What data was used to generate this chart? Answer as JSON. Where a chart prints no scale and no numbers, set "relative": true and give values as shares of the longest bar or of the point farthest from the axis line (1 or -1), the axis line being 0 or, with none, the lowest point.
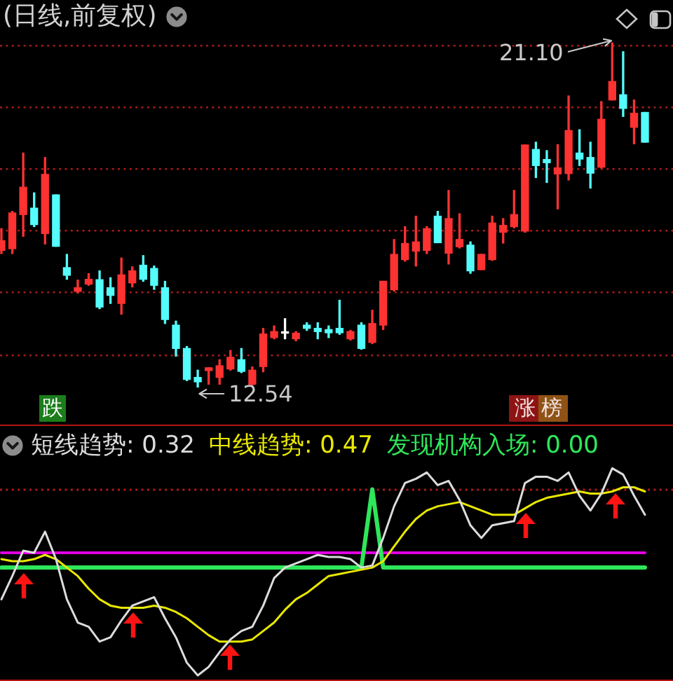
{
  "chart_data": [
    {
      "type": "candlestick",
      "title": "(日线,前复权)",
      "categories": [
        null,
        null,
        null,
        null,
        null,
        null,
        null,
        null,
        null,
        null,
        null,
        null,
        null,
        null,
        null,
        null,
        null,
        null,
        null,
        null,
        null,
        null,
        null,
        null,
        null,
        null,
        null,
        null,
        null,
        null,
        null,
        null,
        null,
        null,
        null,
        null,
        null,
        null,
        null,
        null,
        null,
        null,
        null,
        null,
        null,
        null,
        null,
        null,
        null,
        null,
        null,
        null,
        null,
        null,
        null,
        null,
        null,
        null,
        null,
        null
      ],
      "ohlc": [
        [
          15.94,
          16.48,
          15.86,
          16.18
        ],
        [
          15.98,
          16.91,
          15.86,
          16.87
        ],
        [
          16.83,
          18.36,
          16.29,
          17.51
        ],
        [
          16.99,
          17.37,
          16.53,
          16.58
        ],
        [
          16.36,
          18.25,
          16.1,
          17.83
        ],
        [
          17.32,
          17.32,
          16.04,
          16.04
        ],
        [
          15.51,
          15.84,
          15.22,
          15.32
        ],
        [
          14.92,
          15.2,
          14.88,
          15.01
        ],
        [
          15.1,
          15.36,
          15.07,
          15.22
        ],
        [
          15.21,
          15.43,
          14.49,
          14.53
        ],
        [
          15.01,
          15.26,
          14.62,
          14.82
        ],
        [
          14.62,
          15.75,
          14.35,
          15.33
        ],
        [
          15.13,
          15.53,
          15.03,
          15.43
        ],
        [
          15.57,
          15.81,
          15.17,
          15.22
        ],
        [
          15.49,
          15.55,
          14.97,
          15.07
        ],
        [
          15.01,
          15.17,
          14.12,
          14.22
        ],
        [
          14.08,
          14.18,
          13.31,
          13.5
        ],
        [
          13.5,
          13.55,
          12.7,
          12.73
        ],
        [
          12.78,
          12.96,
          12.54,
          12.67
        ],
        [
          12.95,
          13.02,
          12.61,
          13.02
        ],
        [
          12.78,
          13.22,
          12.61,
          13.07
        ],
        [
          12.99,
          13.45,
          12.96,
          13.28
        ],
        [
          13.22,
          13.5,
          12.9,
          12.93
        ],
        [
          12.61,
          13.04,
          12.57,
          12.96
        ],
        [
          13.05,
          14.0,
          12.92,
          13.86
        ],
        [
          13.77,
          14.06,
          13.74,
          13.92
        ],
        [
          13.88,
          14.24,
          13.74,
          13.9
        ],
        [
          13.74,
          13.92,
          13.69,
          13.88
        ],
        [
          14.08,
          14.14,
          13.95,
          14.0
        ],
        [
          14.0,
          14.14,
          13.74,
          13.92
        ],
        [
          13.97,
          14.06,
          13.77,
          13.89
        ],
        [
          14.0,
          14.7,
          13.85,
          13.89
        ],
        [
          13.74,
          13.95,
          13.71,
          13.92
        ],
        [
          14.08,
          14.14,
          13.48,
          13.5
        ],
        [
          13.65,
          14.45,
          13.62,
          14.12
        ],
        [
          14.08,
          15.17,
          13.97,
          15.17
        ],
        [
          14.96,
          16.21,
          14.93,
          15.84
        ],
        [
          15.71,
          16.53,
          15.67,
          16.11
        ],
        [
          15.92,
          16.79,
          15.55,
          16.15
        ],
        [
          15.94,
          16.53,
          15.86,
          16.48
        ],
        [
          16.79,
          16.91,
          16.13,
          16.13
        ],
        [
          15.87,
          17.43,
          15.6,
          16.73
        ],
        [
          16.03,
          16.85,
          16.0,
          16.21
        ],
        [
          16.07,
          16.15,
          15.37,
          15.43
        ],
        [
          15.46,
          15.84,
          15.46,
          15.84
        ],
        [
          15.71,
          16.79,
          15.69,
          16.62
        ],
        [
          16.39,
          16.73,
          16.12,
          16.56
        ],
        [
          16.53,
          17.43,
          16.5,
          16.83
        ],
        [
          16.42,
          18.56,
          16.39,
          18.56
        ],
        [
          18.45,
          18.63,
          17.75,
          18.05
        ],
        [
          18.2,
          18.42,
          17.63,
          18.12
        ],
        [
          17.84,
          18.57,
          16.97,
          17.99
        ],
        [
          17.85,
          19.78,
          17.69,
          18.92
        ],
        [
          18.36,
          18.94,
          18.05,
          18.21
        ],
        [
          18.25,
          18.63,
          17.49,
          17.86
        ],
        [
          18.01,
          19.64,
          17.99,
          19.2
        ],
        [
          19.68,
          21.1,
          19.68,
          20.14
        ],
        [
          19.81,
          20.88,
          19.27,
          19.47
        ],
        [
          19.0,
          19.68,
          18.59,
          19.35
        ],
        [
          19.37,
          19.37,
          18.63,
          18.63
        ]
      ],
      "colors": [
        "#ff3232",
        "#ff3232",
        "#ff3232",
        "#54fcfc",
        "#ff3232",
        "#54fcfc",
        "#54fcfc",
        "#ff3232",
        "#ff3232",
        "#54fcfc",
        "#54fcfc",
        "#ff3232",
        "#ff3232",
        "#54fcfc",
        "#54fcfc",
        "#54fcfc",
        "#54fcfc",
        "#54fcfc",
        "#54fcfc",
        "#ff3232",
        "#ff3232",
        "#ff3232",
        "#54fcfc",
        "#ff3232",
        "#ff3232",
        "#ff3232",
        "#ffffff",
        "#ff3232",
        "#54fcfc",
        "#54fcfc",
        "#54fcfc",
        "#54fcfc",
        "#ff3232",
        "#54fcfc",
        "#ff3232",
        "#ff3232",
        "#ff3232",
        "#ff3232",
        "#ff3232",
        "#ff3232",
        "#54fcfc",
        "#ff3232",
        "#ff3232",
        "#54fcfc",
        "#ff3232",
        "#ff3232",
        "#ff3232",
        "#ff3232",
        "#ff3232",
        "#54fcfc",
        "#54fcfc",
        "#ff3232",
        "#ff3232",
        "#54fcfc",
        "#54fcfc",
        "#ff3232",
        "#ff3232",
        "#54fcfc",
        "#ff3232",
        "#54fcfc"
      ],
      "yticks": [
        {
          "value": 21.04,
          "label": null
        },
        {
          "value": 19.5,
          "label": null
        },
        {
          "value": 17.96,
          "label": null
        },
        {
          "value": 16.42,
          "label": null
        },
        {
          "value": 14.88,
          "label": null
        },
        {
          "value": 13.34,
          "label": null
        }
      ],
      "grid": "y",
      "tick_labels": false,
      "annotations": [
        "21.10",
        {
          "text": "12.54",
          "y": 12.54
        },
        "跌",
        "涨榜"
      ]
    },
    {
      "type": "line",
      "relative": true,
      "categories": [
        null,
        null,
        null,
        null,
        null,
        null,
        null,
        null,
        null,
        null,
        null,
        null,
        null,
        null,
        null,
        null,
        null,
        null,
        null,
        null,
        null,
        null,
        null,
        null,
        null,
        null,
        null,
        null,
        null,
        null,
        null,
        null,
        null,
        null,
        null,
        null,
        null,
        null,
        null,
        null,
        null,
        null,
        null,
        null,
        null,
        null,
        null,
        null,
        null,
        null,
        null,
        null,
        null,
        null,
        null,
        null,
        null,
        null,
        null,
        null
      ],
      "series": [
        {
          "name": "短线趋势: 0.32",
          "color": "#dcdcdc",
          "values": [
            0.38,
            0.49,
            0.61,
            0.6,
            0.7,
            0.57,
            0.38,
            0.27,
            0.25,
            0.18,
            0.2,
            0.28,
            0.35,
            0.37,
            0.39,
            0.29,
            0.2,
            0.08,
            0.02,
            0.06,
            0.13,
            0.19,
            0.23,
            0.25,
            0.35,
            0.48,
            0.53,
            0.55,
            0.57,
            0.59,
            0.58,
            0.58,
            0.57,
            0.53,
            0.54,
            0.67,
            0.82,
            0.93,
            0.95,
            0.98,
            0.92,
            0.94,
            0.85,
            0.73,
            0.67,
            0.73,
            0.74,
            0.75,
            0.93,
            0.96,
            0.96,
            0.94,
            0.98,
            0.87,
            0.8,
            0.88,
            1.0,
            0.97,
            0.87,
            0.78
          ]
        },
        {
          "name": "中线趋势: 0.47",
          "color": "#e8e800",
          "values": [
            0.57,
            0.56,
            0.56,
            0.57,
            0.59,
            0.57,
            0.53,
            0.49,
            0.43,
            0.38,
            0.35,
            0.34,
            0.34,
            0.34,
            0.35,
            0.34,
            0.32,
            0.29,
            0.25,
            0.21,
            0.18,
            0.18,
            0.18,
            0.19,
            0.23,
            0.27,
            0.33,
            0.38,
            0.41,
            0.45,
            0.49,
            0.5,
            0.51,
            0.52,
            0.53,
            0.56,
            0.63,
            0.7,
            0.76,
            0.8,
            0.82,
            0.83,
            0.84,
            0.82,
            0.8,
            0.78,
            0.78,
            0.78,
            0.81,
            0.84,
            0.86,
            0.87,
            0.88,
            0.89,
            0.88,
            0.88,
            0.89,
            0.91,
            0.91,
            0.89
          ]
        },
        {
          "name": "发现机构入场: 0.00",
          "color": "#2ee65a",
          "values": [
            0.53,
            0.53,
            0.53,
            0.53,
            0.53,
            0.53,
            0.53,
            0.53,
            0.53,
            0.53,
            0.53,
            0.53,
            0.53,
            0.53,
            0.53,
            0.53,
            0.53,
            0.53,
            0.53,
            0.53,
            0.53,
            0.53,
            0.53,
            0.53,
            0.53,
            0.53,
            0.53,
            0.53,
            0.53,
            0.53,
            0.53,
            0.53,
            0.53,
            0.53,
            0.9,
            0.53,
            0.53,
            0.53,
            0.53,
            0.53,
            0.53,
            0.53,
            0.53,
            0.53,
            0.53,
            0.53,
            0.53,
            0.53,
            0.53,
            0.53,
            0.53,
            0.53,
            0.53,
            0.53,
            0.53,
            0.53,
            0.53,
            0.53,
            0.53,
            0.53
          ]
        },
        {
          "color": "#e000e0",
          "values": [
            0.6,
            0.6,
            0.6,
            0.6,
            0.6,
            0.6,
            0.6,
            0.6,
            0.6,
            0.6,
            0.6,
            0.6,
            0.6,
            0.6,
            0.6,
            0.6,
            0.6,
            0.6,
            0.6,
            0.6,
            0.6,
            0.6,
            0.6,
            0.6,
            0.6,
            0.6,
            0.6,
            0.6,
            0.6,
            0.6,
            0.6,
            0.6,
            0.6,
            0.6,
            0.6,
            0.6,
            0.6,
            0.6,
            0.6,
            0.6,
            0.6,
            0.6,
            0.6,
            0.6,
            0.6,
            0.6,
            0.6,
            0.6,
            0.6,
            0.6,
            0.6,
            0.6,
            0.6,
            0.6,
            0.6,
            0.6,
            0.6,
            0.6,
            0.6,
            0.6
          ]
        }
      ],
      "ref_lines": [
        {
          "axis": "y",
          "value": 0.9,
          "color": "#b01a1a",
          "line_style": "dotted"
        }
      ],
      "legend": "top left",
      "tick_labels": false
    }
  ]
}
